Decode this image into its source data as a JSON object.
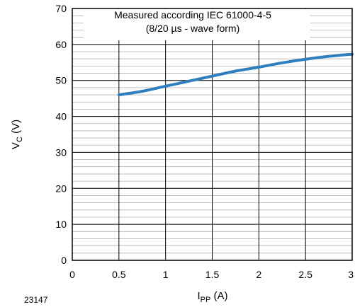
{
  "chart_data": {
    "type": "line",
    "figure_id": "23147",
    "annotation": {
      "line1": "Measured according IEC 61000-4-5",
      "line2": "(8/20 µs - wave form)"
    },
    "xlabel": {
      "main": "I",
      "sub": "PP",
      "unit": " (A)"
    },
    "ylabel": {
      "main": "V",
      "sub": "C",
      "unit": " (V)"
    },
    "xlim": [
      0,
      3
    ],
    "ylim": [
      0,
      70
    ],
    "xticks": [
      0,
      0.5,
      1,
      1.5,
      2,
      2.5,
      3
    ],
    "xtick_labels": [
      "0",
      "0.5",
      "1",
      "1.5",
      "2",
      "2.5",
      "3"
    ],
    "yticks": [
      0,
      10,
      20,
      30,
      40,
      50,
      60,
      70
    ],
    "ytick_labels": [
      "0",
      "10",
      "20",
      "30",
      "40",
      "50",
      "60",
      "70"
    ],
    "grid": true,
    "minor_y_step": 2,
    "series": [
      {
        "color": "#2e7fbf",
        "x": [
          0.5,
          0.75,
          1.0,
          1.25,
          1.5,
          1.75,
          2.0,
          2.25,
          2.5,
          2.75,
          3.0
        ],
        "y": [
          46.0,
          47.0,
          48.4,
          49.8,
          51.2,
          52.6,
          53.7,
          54.9,
          55.9,
          56.7,
          57.3
        ]
      }
    ]
  }
}
